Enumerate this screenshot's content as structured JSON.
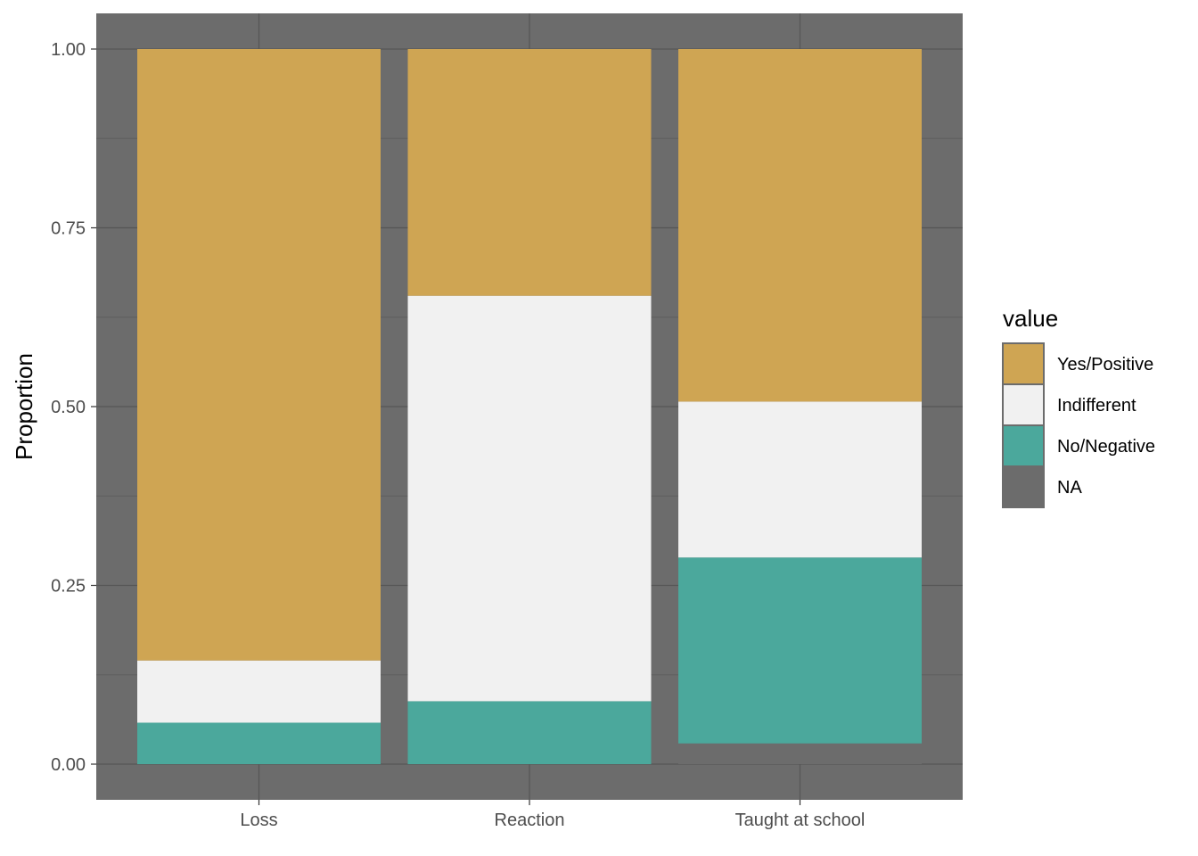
{
  "chart_data": {
    "type": "bar",
    "stacked": true,
    "categories": [
      "Loss",
      "Reaction",
      "Taught at school"
    ],
    "series": [
      {
        "name": "Yes/Positive",
        "color": "#CFA553",
        "values": [
          0.855,
          0.345,
          0.493
        ]
      },
      {
        "name": "Indifferent",
        "color": "#F1F1F1",
        "values": [
          0.087,
          0.567,
          0.218
        ]
      },
      {
        "name": "No/Negative",
        "color": "#4BA89C",
        "values": [
          0.058,
          0.088,
          0.26
        ]
      },
      {
        "name": "NA",
        "color": "#6C6C6C",
        "values": [
          0.0,
          0.0,
          0.029
        ]
      }
    ],
    "xlabel": "",
    "ylabel": "Proportion",
    "ylim": [
      0,
      1
    ],
    "yticks": [
      "0.00",
      "0.25",
      "0.50",
      "0.75",
      "1.00"
    ],
    "legend": {
      "title": "value",
      "position": "right"
    },
    "panel_background": "#6C6C6C",
    "grid": true
  }
}
